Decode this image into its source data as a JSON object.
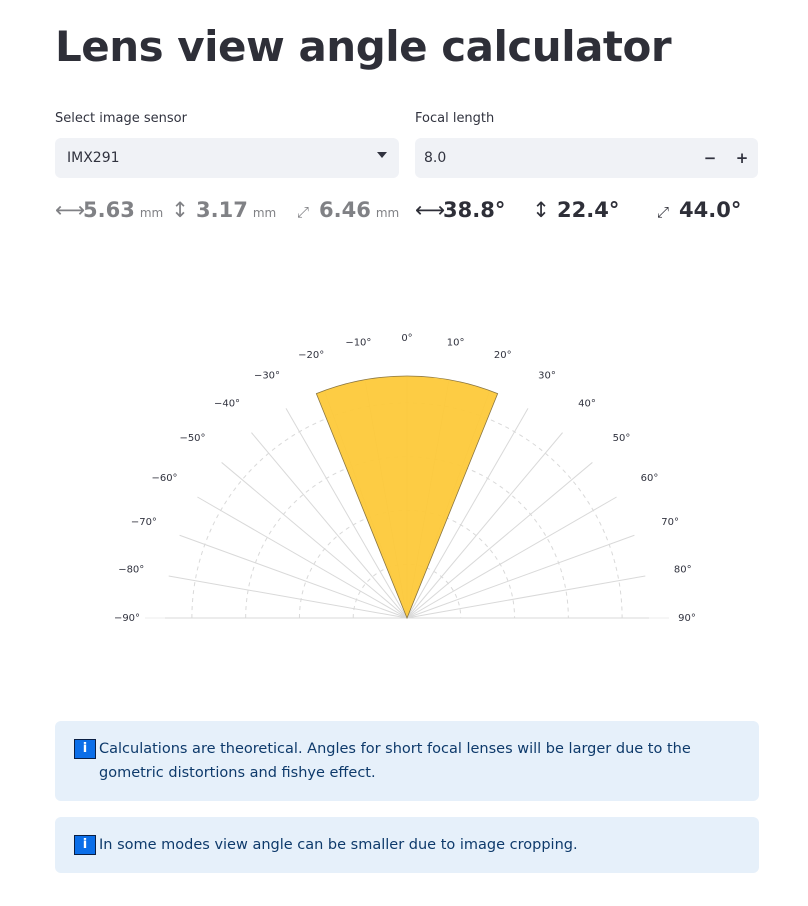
{
  "page": {
    "title": "Lens view angle calculator"
  },
  "sensor_select": {
    "label": "Select image sensor",
    "value": "IMX291"
  },
  "focal_length": {
    "label": "Focal length",
    "value": "8.0",
    "decrement": "−",
    "increment": "+"
  },
  "sensor_size": {
    "horizontal": {
      "icon": "horizontal-arrow-icon",
      "glyph": "⟷",
      "value": "5.63",
      "unit": "mm"
    },
    "vertical": {
      "icon": "vertical-arrow-icon",
      "glyph": "↕",
      "value": "3.17",
      "unit": "mm"
    },
    "diagonal": {
      "icon": "diagonal-arrow-icon",
      "glyph": "⤢",
      "value": "6.46",
      "unit": "mm"
    }
  },
  "view_angle": {
    "horizontal": {
      "icon": "horizontal-arrow-icon",
      "glyph": "⟷",
      "value": "38.8°"
    },
    "vertical": {
      "icon": "vertical-arrow-icon",
      "glyph": "↕",
      "value": "22.4°"
    },
    "diagonal": {
      "icon": "diagonal-arrow-icon",
      "glyph": "⤢",
      "value": "44.0°"
    }
  },
  "chart_data": {
    "type": "polar-sector",
    "angular_ticks": [
      -90,
      -80,
      -70,
      -60,
      -50,
      -40,
      -30,
      -20,
      -10,
      0,
      10,
      20,
      30,
      40,
      50,
      60,
      70,
      80,
      90
    ],
    "tick_labels": [
      "−90°",
      "−80°",
      "−70°",
      "−60°",
      "−50°",
      "−40°",
      "−30°",
      "−20°",
      "−10°",
      "0°",
      "10°",
      "20°",
      "30°",
      "40°",
      "50°",
      "60°",
      "70°",
      "80°",
      "90°"
    ],
    "sector": {
      "start_deg": -22,
      "end_deg": 22,
      "radius_fraction": 1.0
    },
    "radial_rings": 4,
    "sector_color": "#fdc93a",
    "sector_stroke": "#8a7540",
    "grid_color": "#d9d9d9"
  },
  "notices": [
    {
      "icon": "info-icon",
      "glyph": "i",
      "text": "Calculations are theoretical. Angles for short focal lenses will be larger due to the gometric distortions and fishye effect."
    },
    {
      "icon": "info-icon",
      "glyph": "i",
      "text": "In some modes view angle can be smaller due to image cropping."
    }
  ],
  "colors": {
    "accent": "#fdc93a",
    "info_bg": "#e6f0fa",
    "info_text": "#0e3a6b",
    "info_icon": "#0b6ee8"
  }
}
